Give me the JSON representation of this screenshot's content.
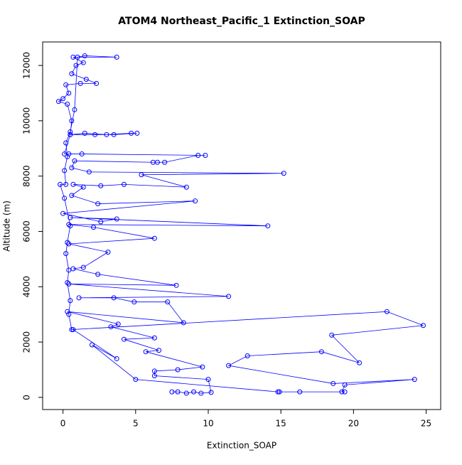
{
  "chart_data": {
    "type": "line",
    "title": "ATOM4 Northeast_Pacific_1 Extinction_SOAP",
    "x_label": "Extinction_SOAP",
    "y_label": "Altitude (m)",
    "color": "#0000ff",
    "xlim": [
      -1.4,
      26
    ],
    "ylim": [
      -440,
      12850
    ],
    "xticks": [
      0,
      5,
      10,
      15,
      20,
      25
    ],
    "yticks": [
      0,
      2000,
      4000,
      6000,
      8000,
      10000,
      12000
    ],
    "x": [
      7.5,
      7.9,
      8.5,
      9.0,
      9.5,
      10.2,
      10.0,
      6.3,
      6.3,
      7.9,
      9.6,
      5.7,
      6.6,
      4.2,
      6.3,
      3.3,
      3.8,
      0.3,
      8.3,
      7.2,
      4.9,
      3.5,
      1.1,
      11.4,
      0.4,
      7.8,
      2.4,
      0.7,
      1.4,
      3.1,
      0.4,
      6.3,
      2.1,
      0.4,
      14.1,
      0.5,
      3.7,
      2.6,
      0.0,
      9.1,
      2.4,
      0.6,
      1.4,
      0.7,
      2.6,
      4.2,
      8.5,
      5.4,
      15.2,
      1.8,
      0.6,
      0.8,
      6.2,
      6.5,
      7.0,
      9.3,
      9.8,
      1.3,
      0.4,
      0.1,
      0.5,
      1.5,
      3.0,
      4.7,
      5.1,
      3.5,
      2.2,
      0.5,
      0.6,
      0.3,
      -0.3,
      0.0,
      0.4,
      0.2,
      1.2,
      2.3,
      1.6,
      0.6,
      0.9,
      1.4,
      0.7,
      3.7,
      1.5,
      1.0,
      0.8,
      0.5,
      0.2,
      0.3,
      0.1,
      0.2,
      -0.2,
      0.1,
      0.5,
      0.3,
      0.2,
      0.4,
      0.3,
      0.5,
      0.4,
      0.6,
      22.3,
      24.8,
      18.5,
      20.4,
      17.8,
      12.7,
      11.4,
      18.6,
      24.2,
      19.4,
      19.2,
      19.4,
      16.3,
      14.9,
      14.8,
      5.0,
      2.0,
      3.7,
      0.7
    ],
    "y": [
      200,
      200,
      150,
      200,
      150,
      180,
      650,
      780,
      950,
      1000,
      1100,
      1650,
      1700,
      2100,
      2150,
      2550,
      2650,
      3100,
      2700,
      3450,
      3450,
      3600,
      3600,
      3650,
      4100,
      4050,
      4450,
      4650,
      4700,
      5250,
      5550,
      5750,
      6150,
      6250,
      6200,
      6500,
      6450,
      6350,
      6650,
      7100,
      7000,
      7300,
      7600,
      7700,
      7650,
      7700,
      7600,
      8050,
      8100,
      8150,
      8300,
      8550,
      8500,
      8500,
      8500,
      8750,
      8750,
      8800,
      8800,
      8800,
      9500,
      9550,
      9500,
      9550,
      9550,
      9500,
      9500,
      9500,
      10000,
      10600,
      10700,
      10800,
      11000,
      11300,
      11350,
      11350,
      11500,
      11700,
      12000,
      12100,
      12300,
      12300,
      12350,
      12300,
      10400,
      9600,
      9200,
      8700,
      8200,
      7700,
      7700,
      7200,
      6200,
      5600,
      5200,
      4600,
      4150,
      3500,
      3000,
      2450,
      3100,
      2600,
      2250,
      1250,
      1650,
      1500,
      1150,
      500,
      650,
      450,
      200,
      200,
      200,
      200,
      200,
      650,
      1900,
      1400,
      2450
    ]
  }
}
